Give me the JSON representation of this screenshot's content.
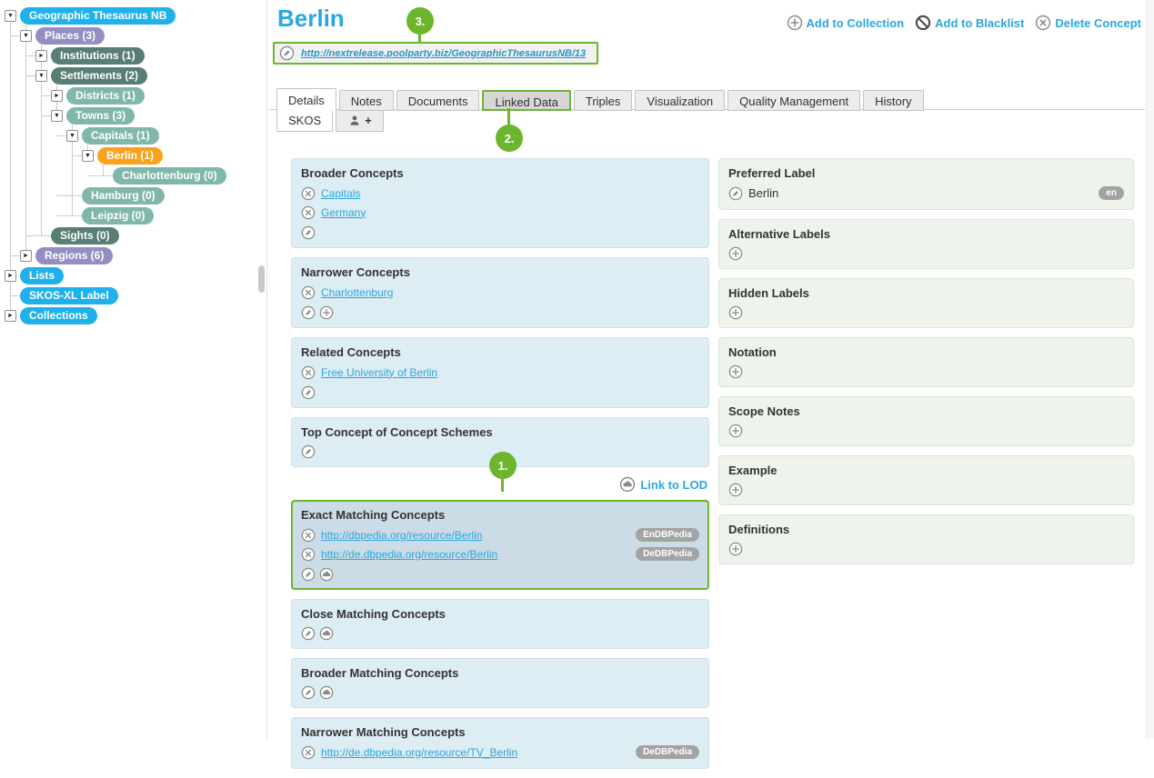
{
  "colors": {
    "pill_blue": "#1fb1ec",
    "pill_purple": "#938fc2",
    "pill_darkteal": "#587e75",
    "pill_teal": "#80b7aa",
    "pill_orange": "#f9a21b",
    "accent_green": "#6cb52d",
    "link_cyan": "#2aa7e0",
    "uri_link": "#2796c8",
    "left_box_bg": "#ddedf4",
    "right_box_bg": "#eef3ec",
    "highlight_box_bg": "#ccdce6",
    "badge_bg": "#a3a3a3"
  },
  "tree": {
    "items": [
      {
        "label": "Geographic Thesaurus NB",
        "color": "pill_blue",
        "depth": 0,
        "expander": "open"
      },
      {
        "label": "Places (3)",
        "color": "pill_purple",
        "depth": 1,
        "expander": "open"
      },
      {
        "label": "Institutions (1)",
        "color": "pill_darkteal",
        "depth": 2,
        "expander": "closed"
      },
      {
        "label": "Settlements (2)",
        "color": "pill_darkteal",
        "depth": 2,
        "expander": "open"
      },
      {
        "label": "Districts (1)",
        "color": "pill_teal",
        "depth": 3,
        "expander": "closed"
      },
      {
        "label": "Towns (3)",
        "color": "pill_teal",
        "depth": 3,
        "expander": "open"
      },
      {
        "label": "Capitals (1)",
        "color": "pill_teal",
        "depth": 4,
        "expander": "open"
      },
      {
        "label": "Berlin (1)",
        "color": "pill_orange",
        "depth": 5,
        "expander": "open"
      },
      {
        "label": "Charlottenburg (0)",
        "color": "pill_teal",
        "depth": 6,
        "expander": "none"
      },
      {
        "label": "Hamburg (0)",
        "color": "pill_teal",
        "depth": 4,
        "expander": "none"
      },
      {
        "label": "Leipzig (0)",
        "color": "pill_teal",
        "depth": 4,
        "expander": "none"
      },
      {
        "label": "Sights (0)",
        "color": "pill_darkteal",
        "depth": 2,
        "expander": "none"
      },
      {
        "label": "Regions (6)",
        "color": "pill_purple",
        "depth": 1,
        "expander": "closed"
      },
      {
        "label": "Lists",
        "color": "pill_blue",
        "depth": 0,
        "expander": "closed"
      },
      {
        "label": "SKOS-XL Label",
        "color": "pill_blue",
        "depth": 0,
        "expander": "none"
      },
      {
        "label": "Collections",
        "color": "pill_blue",
        "depth": 0,
        "expander": "closed"
      }
    ]
  },
  "header": {
    "title": "Berlin",
    "uri": "http://nextrelease.poolparty.biz/GeographicThesaurusNB/13",
    "actions": [
      {
        "icon": "plus-circle-icon",
        "label": "Add to Collection"
      },
      {
        "icon": "ban-circle-icon",
        "label": "Add to Blacklist"
      },
      {
        "icon": "x-circle-icon",
        "label": "Delete Concept"
      }
    ]
  },
  "tabs": {
    "items": [
      "Details",
      "Notes",
      "Documents",
      "Linked Data",
      "Triples",
      "Visualization",
      "Quality Management",
      "History"
    ],
    "active": "Details",
    "highlighted": "Linked Data"
  },
  "subtabs": {
    "skos_label": "SKOS",
    "person_plus_label": "+"
  },
  "link_to_lod_label": "Link to LOD",
  "left_boxes": [
    {
      "title": "Broader Concepts",
      "entries": [
        {
          "text": "Capitals"
        },
        {
          "text": "Germany"
        }
      ],
      "icons": [
        "pencil"
      ],
      "highlighted": false
    },
    {
      "title": "Narrower Concepts",
      "entries": [
        {
          "text": "Charlottenburg"
        }
      ],
      "icons": [
        "pencil",
        "plus"
      ],
      "highlighted": false
    },
    {
      "title": "Related Concepts",
      "entries": [
        {
          "text": "Free University of Berlin"
        }
      ],
      "icons": [
        "pencil"
      ],
      "highlighted": false
    },
    {
      "title": "Top Concept of Concept Schemes",
      "entries": [],
      "icons": [
        "pencil"
      ],
      "highlighted": false
    },
    {
      "title": "Exact Matching Concepts",
      "entries": [
        {
          "text": "http://dbpedia.org/resource/Berlin",
          "badge": "EnDBPedia"
        },
        {
          "text": "http://de.dbpedia.org/resource/Berlin",
          "badge": "DeDBPedia"
        }
      ],
      "icons": [
        "pencil",
        "cloud"
      ],
      "highlighted": true
    },
    {
      "title": "Close Matching Concepts",
      "entries": [],
      "icons": [
        "pencil",
        "cloud"
      ],
      "highlighted": false
    },
    {
      "title": "Broader Matching Concepts",
      "entries": [],
      "icons": [
        "pencil",
        "cloud"
      ],
      "highlighted": false
    },
    {
      "title": "Narrower Matching Concepts",
      "entries": [
        {
          "text": "http://de.dbpedia.org/resource/TV_Berlin",
          "badge": "DeDBPedia"
        }
      ],
      "icons": [],
      "highlighted": false
    }
  ],
  "right_boxes": [
    {
      "title": "Preferred Label",
      "value": {
        "icon": "pencil",
        "text": "Berlin",
        "badge": "en"
      },
      "icons": []
    },
    {
      "title": "Alternative Labels",
      "icons": [
        "plus"
      ]
    },
    {
      "title": "Hidden Labels",
      "icons": [
        "plus"
      ]
    },
    {
      "title": "Notation",
      "icons": [
        "plus"
      ]
    },
    {
      "title": "Scope Notes",
      "icons": [
        "plus"
      ]
    },
    {
      "title": "Example",
      "icons": [
        "plus"
      ]
    },
    {
      "title": "Definitions",
      "icons": [
        "plus"
      ]
    }
  ],
  "annotations": [
    "1.",
    "2.",
    "3."
  ]
}
